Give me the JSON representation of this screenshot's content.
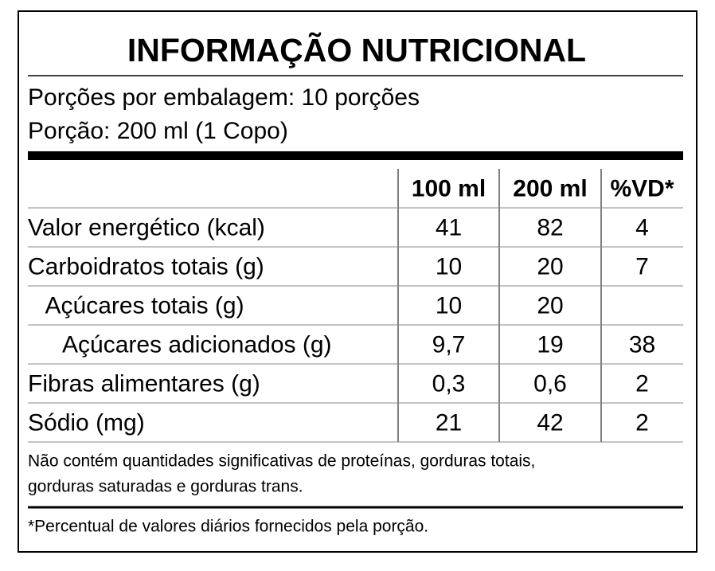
{
  "header": {
    "title": "INFORMAÇÃO NUTRICIONAL",
    "servings": [
      "Porções por embalagem: 10 porções",
      "Porção: 200 ml (1 Copo)"
    ]
  },
  "table": {
    "columns": [
      "100 ml",
      "200 ml",
      "%VD*"
    ],
    "rows": [
      {
        "label": "Valor energético (kcal)",
        "indent": 0,
        "cells": [
          "41",
          "82",
          "4"
        ]
      },
      {
        "label": "Carboidratos totais (g)",
        "indent": 0,
        "cells": [
          "10",
          "20",
          "7"
        ]
      },
      {
        "label": "Açúcares totais (g)",
        "indent": 1,
        "cells": [
          "10",
          "20",
          null
        ]
      },
      {
        "label": "Açúcares adicionados (g)",
        "indent": 2,
        "cells": [
          "9,7",
          "19",
          "38"
        ]
      },
      {
        "label": "Fibras alimentares (g)",
        "indent": 0,
        "cells": [
          "0,3",
          "0,6",
          "2"
        ]
      },
      {
        "label": "Sódio (mg)",
        "indent": 0,
        "cells": [
          "21",
          "42",
          "2"
        ]
      }
    ]
  },
  "footer": {
    "note": [
      "Não contém quantidades significativas de proteínas, gorduras totais,",
      "gorduras saturadas e gorduras trans."
    ],
    "vd_note": "*Percentual de valores diários fornecidos pela porção."
  }
}
